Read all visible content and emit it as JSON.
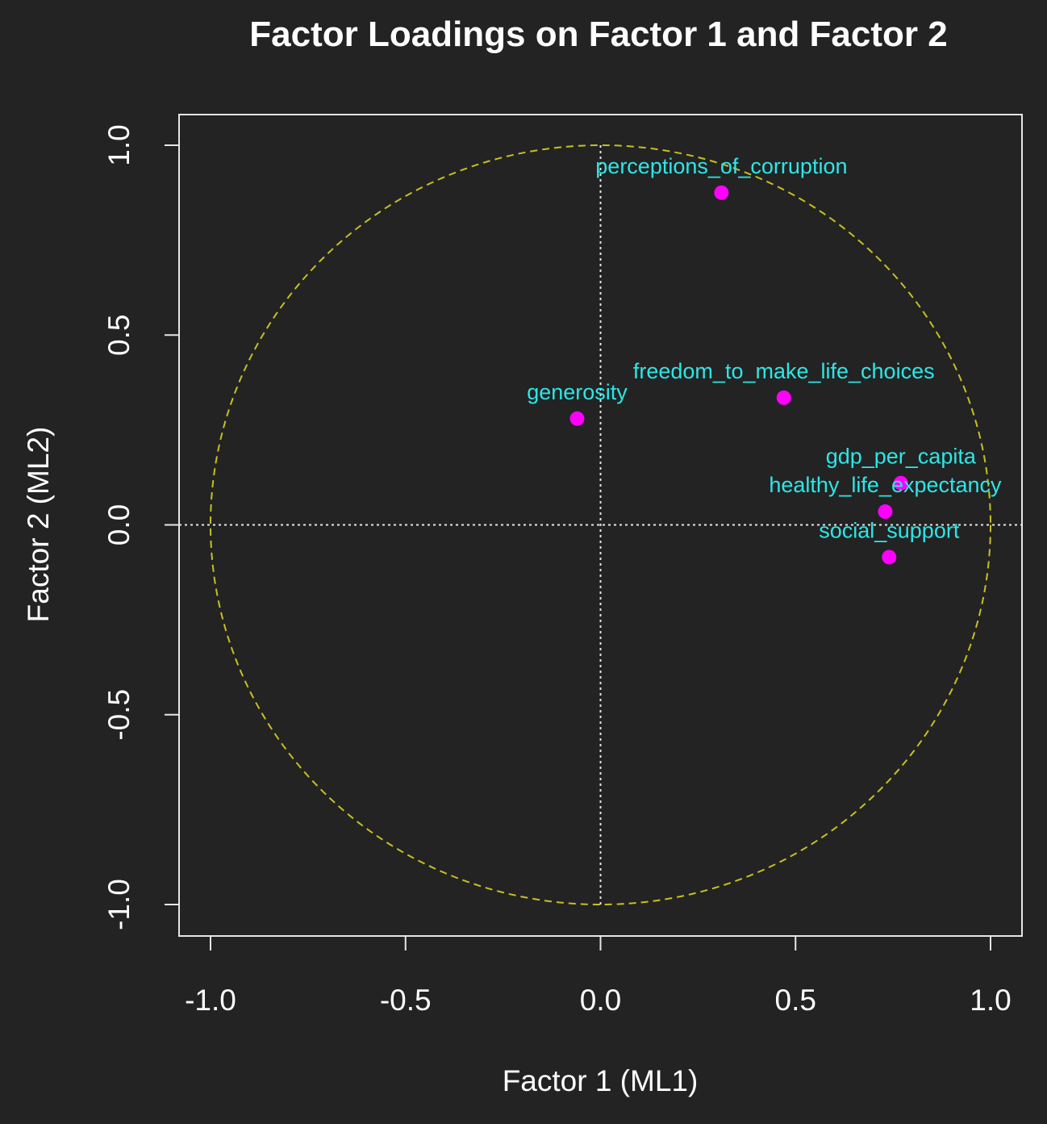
{
  "chart_data": {
    "type": "scatter",
    "title": "Factor Loadings on Factor 1 and Factor 2",
    "xlabel": "Factor 1 (ML1)",
    "ylabel": "Factor 2 (ML2)",
    "xlim": [
      -1.08,
      1.08
    ],
    "ylim": [
      -1.08,
      1.08
    ],
    "xticks": [
      -1.0,
      -0.5,
      0.0,
      0.5,
      1.0
    ],
    "yticks": [
      -1.0,
      -0.5,
      0.0,
      0.5,
      1.0
    ],
    "xtick_labels": [
      "-1.0",
      "-0.5",
      "0.0",
      "0.5",
      "1.0"
    ],
    "ytick_labels": [
      "-1.0",
      "-0.5",
      "0.0",
      "0.5",
      "1.0"
    ],
    "grid": false,
    "reference_lines": {
      "x": 0,
      "y": 0,
      "style": "dotted"
    },
    "unit_circle": {
      "radius": 1,
      "style": "dashed"
    },
    "points": [
      {
        "label": "perceptions_of_corruption",
        "x": 0.31,
        "y": 0.875
      },
      {
        "label": "freedom_to_make_life_choices",
        "x": 0.47,
        "y": 0.335
      },
      {
        "label": "generosity",
        "x": -0.06,
        "y": 0.28
      },
      {
        "label": "gdp_per_capita",
        "x": 0.77,
        "y": 0.11
      },
      {
        "label": "healthy_life_expectancy",
        "x": 0.73,
        "y": 0.035
      },
      {
        "label": "social_support",
        "x": 0.74,
        "y": -0.085
      }
    ]
  },
  "colors": {
    "background": "#232323",
    "axis": "#e6e6e6",
    "text": "#ffffff",
    "point": "#ff00ff",
    "point_label": "#2ee6e6",
    "circle": "#c8c020",
    "reference": "#e6e6e6"
  }
}
